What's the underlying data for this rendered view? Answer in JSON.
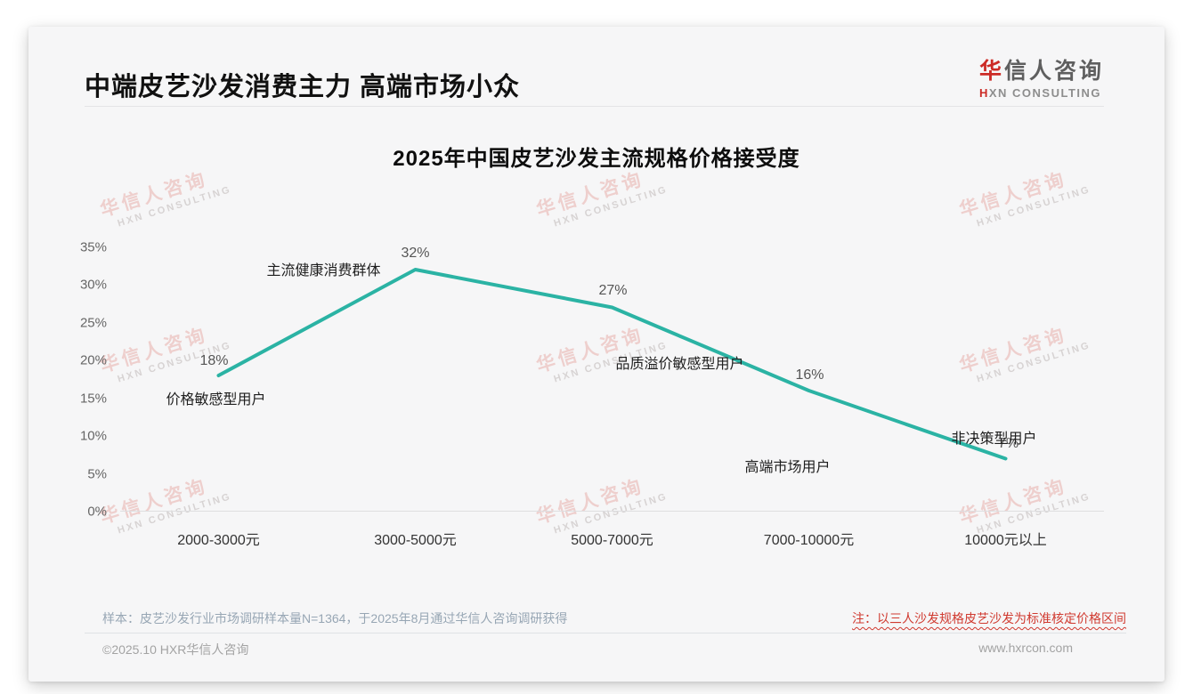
{
  "page": {
    "header": {
      "title": "中端皮艺沙发消费主力 高端市场小众"
    },
    "logo": {
      "brand_first_char": "华",
      "brand_rest": "信人咨询",
      "subtitle_first_char": "H",
      "subtitle_rest": "XN CONSULTING"
    },
    "watermark": {
      "line1": "华信人咨询",
      "line2": "HXN CONSULTING"
    },
    "footer": {
      "sample_note": "样本：皮艺沙发行业市场调研样本量N=1364，于2025年8月通过华信人咨询调研获得",
      "price_note": "注：以三人沙发规格皮艺沙发为标准核定价格区间",
      "copyright": "©2025.10 HXR华信人咨询",
      "website": "www.hxrcon.com"
    }
  },
  "chart_data": {
    "type": "line",
    "title": "2025年中国皮艺沙发主流规格价格接受度",
    "categories": [
      "2000-3000元",
      "3000-5000元",
      "5000-7000元",
      "7000-10000元",
      "10000元以上"
    ],
    "values": [
      18,
      32,
      27,
      16,
      7
    ],
    "value_labels": [
      "18%",
      "32%",
      "27%",
      "16%",
      "7%"
    ],
    "annotations": [
      "价格敏感型用户",
      "主流健康消费群体",
      "品质溢价敏感型用户",
      "高端市场用户",
      "非决策型用户"
    ],
    "xlabel": "",
    "ylabel": "",
    "ylim": [
      0,
      35
    ],
    "ytick_step": 5,
    "ytick_labels": [
      "0%",
      "5%",
      "10%",
      "15%",
      "20%",
      "25%",
      "30%",
      "35%"
    ],
    "line_color": "#2bb3a4",
    "grid": false,
    "legend": false
  }
}
